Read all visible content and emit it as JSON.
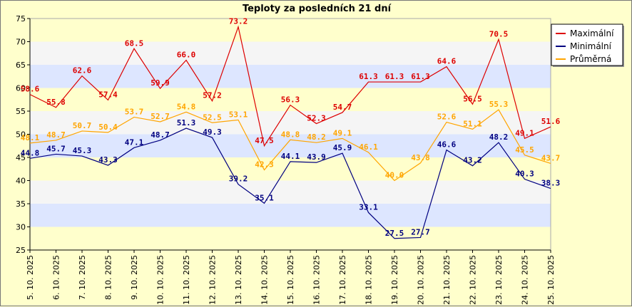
{
  "chart_data": {
    "type": "line",
    "title": "Teploty za posledních 21 dní",
    "xlabel": "",
    "ylabel": "",
    "ylim": [
      25,
      75
    ],
    "ytick_step": 5,
    "legend_position": "top-right",
    "background_bands": [
      "#ffffcc",
      "#dde6ff",
      "#f5f5f5"
    ],
    "categories": [
      "5. 10. 2025",
      "6. 10. 2025",
      "7. 10. 2025",
      "8. 10. 2025",
      "9. 10. 2025",
      "10. 10. 2025",
      "11. 10. 2025",
      "12. 10. 2025",
      "13. 10. 2025",
      "14. 10. 2025",
      "15. 10. 2025",
      "16. 10. 2025",
      "17. 10. 2025",
      "18. 10. 2025",
      "19. 10. 2025",
      "20. 10. 2025",
      "21. 10. 2025",
      "22. 10. 2025",
      "23. 10. 2025",
      "24. 10. 2025",
      "25. 10. 2025"
    ],
    "series": [
      {
        "name": "Maximální",
        "color": "#dd0000",
        "values": [
          58.6,
          55.8,
          62.6,
          57.4,
          68.5,
          59.9,
          66.0,
          57.2,
          73.2,
          47.5,
          56.3,
          52.3,
          54.7,
          61.3,
          61.3,
          61.3,
          64.6,
          56.5,
          70.5,
          49.1,
          51.6
        ]
      },
      {
        "name": "Minimální",
        "color": "#000080",
        "values": [
          44.8,
          45.7,
          45.3,
          43.3,
          47.1,
          48.7,
          51.3,
          49.3,
          39.2,
          35.1,
          44.1,
          43.9,
          45.9,
          33.1,
          27.5,
          27.7,
          46.6,
          43.2,
          48.2,
          40.3,
          38.3
        ]
      },
      {
        "name": "Průměrná",
        "color": "#ffa500",
        "values": [
          48.1,
          48.7,
          50.7,
          50.4,
          53.7,
          52.7,
          54.8,
          52.5,
          53.1,
          42.3,
          48.8,
          48.2,
          49.1,
          46.1,
          40.0,
          43.8,
          52.6,
          51.1,
          55.3,
          45.5,
          43.7
        ]
      }
    ]
  }
}
